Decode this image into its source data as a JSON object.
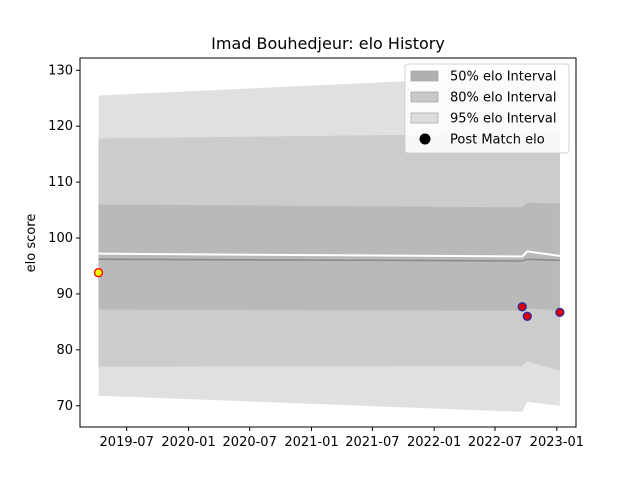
{
  "chart_data": {
    "type": "line",
    "title": "Imad Bouhedjeur: elo History",
    "xlabel": "",
    "ylabel": "elo score",
    "xlim": [
      "2019-02-12",
      "2023-02-27"
    ],
    "ylim": [
      66.2,
      132.2
    ],
    "x_ticks": [
      "2019-07",
      "2020-01",
      "2020-07",
      "2021-01",
      "2021-07",
      "2022-01",
      "2022-07",
      "2023-01"
    ],
    "y_ticks": [
      70,
      80,
      90,
      100,
      110,
      120,
      130
    ],
    "grid": false,
    "legend_position": "top-right",
    "band_dates": [
      "2019-04-08",
      "2022-09-20",
      "2022-10-05",
      "2023-01-10"
    ],
    "mean": [
      96.2,
      95.9,
      96.2,
      96.0
    ],
    "bands": [
      {
        "name": "95% elo Interval",
        "color": "#e0e0e0",
        "lower": [
          71.8,
          68.9,
          70.7,
          70.0
        ],
        "upper": [
          125.5,
          129.0,
          129.3,
          128.7
        ]
      },
      {
        "name": "80% elo Interval",
        "color": "#cccccc",
        "lower": [
          77.0,
          77.1,
          77.9,
          76.3
        ],
        "upper": [
          117.8,
          118.7,
          119.2,
          119.2
        ]
      },
      {
        "name": "50% elo Interval",
        "color": "#b9b9b9",
        "lower": [
          87.2,
          87.0,
          87.4,
          87.1
        ],
        "upper": [
          106.0,
          105.5,
          106.3,
          106.2
        ]
      }
    ],
    "highlight_line": {
      "color": "#ffffff",
      "values": [
        97.2,
        96.7,
        97.6,
        96.8
      ]
    },
    "post_match": [
      {
        "date": "2019-04-08",
        "elo": 93.8,
        "fill": "#ffff00",
        "edge": "#ff0000"
      },
      {
        "date": "2022-09-20",
        "elo": 87.7,
        "fill": "#dd0000",
        "edge": "#2a2aa5"
      },
      {
        "date": "2022-10-05",
        "elo": 86.0,
        "fill": "#dd0000",
        "edge": "#2a2aa5"
      },
      {
        "date": "2023-01-10",
        "elo": 86.7,
        "fill": "#dd0000",
        "edge": "#2a2aa5"
      }
    ],
    "legend": [
      {
        "label": "50% elo Interval",
        "kind": "patch",
        "color": "#b0b0b0"
      },
      {
        "label": "80% elo Interval",
        "kind": "patch",
        "color": "#c8c8c8"
      },
      {
        "label": "95% elo Interval",
        "kind": "patch",
        "color": "#dedede"
      },
      {
        "label": "Post Match elo",
        "kind": "marker",
        "color": "#000000"
      }
    ]
  }
}
